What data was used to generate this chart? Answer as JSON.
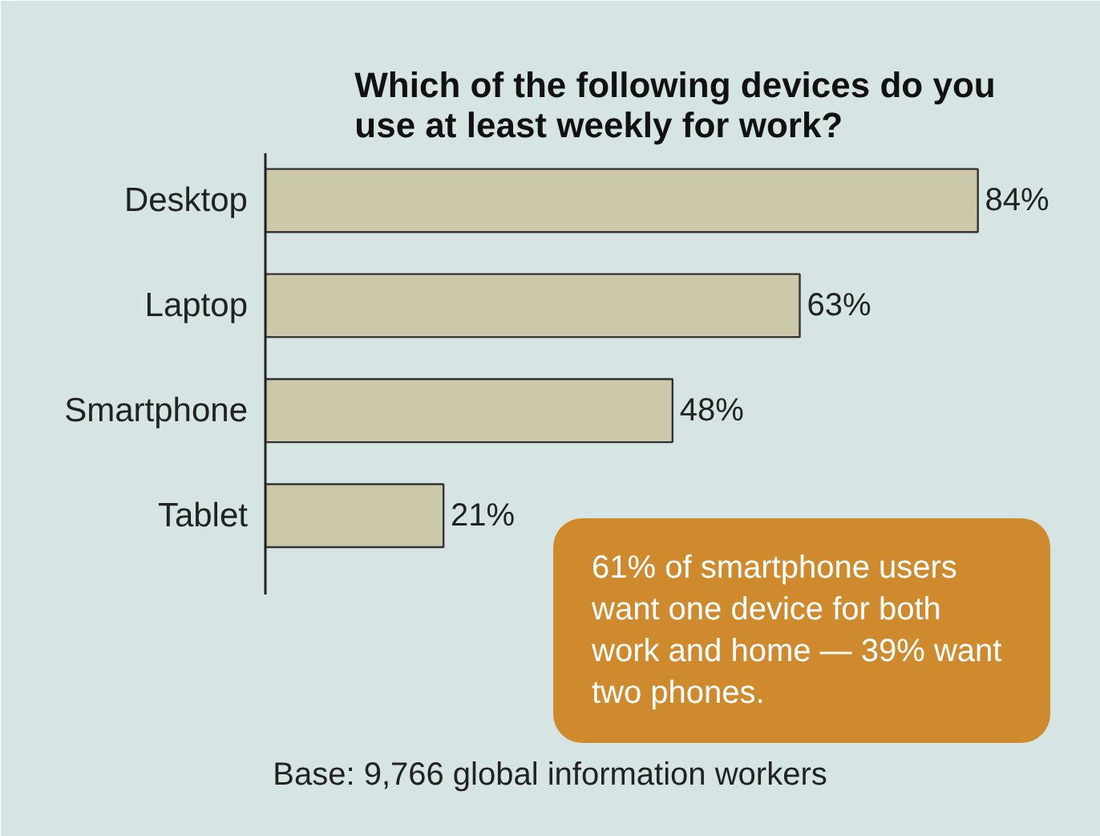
{
  "chart_data": {
    "type": "bar",
    "orientation": "horizontal",
    "title": "Which of the following devices do you use at least weekly for work?",
    "categories": [
      "Desktop",
      "Laptop",
      "Smartphone",
      "Tablet"
    ],
    "values": [
      84,
      63,
      48,
      21
    ],
    "value_labels": [
      "84%",
      "63%",
      "48%",
      "21%"
    ],
    "color": "#cbc9aa",
    "annotations": [
      "61% of smartphone users want one device for both work and home — 39% want two phones.",
      "Base: 9,766 global information workers"
    ],
    "grid": false
  }
}
